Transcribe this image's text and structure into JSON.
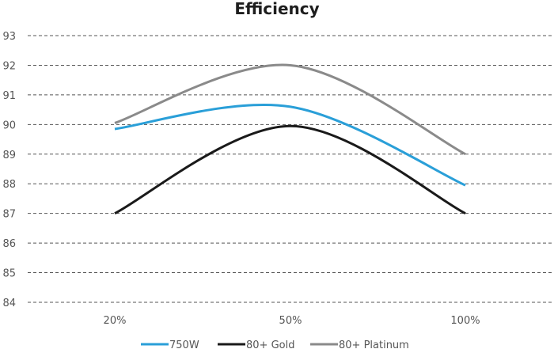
{
  "chart_data": {
    "type": "line",
    "title": "Efficiency",
    "xlabel": "",
    "ylabel": "",
    "categories": [
      "20%",
      "50%",
      "100%"
    ],
    "ylim": [
      84,
      93
    ],
    "yticks": [
      "93",
      "92",
      "91",
      "90",
      "89",
      "88",
      "87",
      "86",
      "85",
      "84"
    ],
    "grid": true,
    "legend_position": "bottom",
    "series": [
      {
        "name": "750W",
        "color": "#2a9fd8",
        "values": [
          89.85,
          90.6,
          87.95
        ]
      },
      {
        "name": "80+ Gold",
        "color": "#1a1a1a",
        "values": [
          87.0,
          89.95,
          87.0
        ]
      },
      {
        "name": "80+ Platinum",
        "color": "#8a8a8a",
        "values": [
          90.05,
          92.0,
          89.0
        ]
      }
    ]
  }
}
